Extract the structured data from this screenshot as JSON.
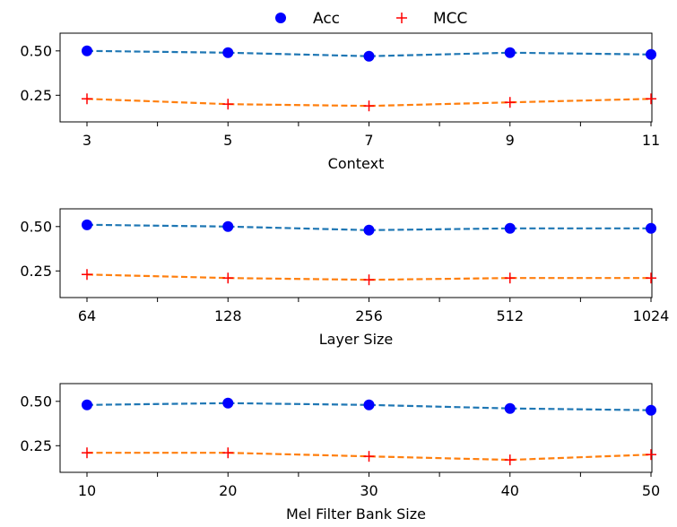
{
  "legend": {
    "items": [
      {
        "label": "Acc",
        "color": "#0000ff",
        "marker": "circle"
      },
      {
        "label": "MCC",
        "color": "#ff0000",
        "marker": "plus"
      }
    ]
  },
  "colors": {
    "acc_line": "#1f77b4",
    "mcc_line": "#ff7f0e",
    "acc_marker": "#0000ff",
    "mcc_marker": "#ff0000"
  },
  "chart_data": [
    {
      "type": "line",
      "xlabel": "Context",
      "categories": [
        "3",
        "5",
        "7",
        "9",
        "11"
      ],
      "yticks": [
        "0.25",
        "0.50"
      ],
      "ylim": [
        0.1,
        0.6
      ],
      "series": [
        {
          "name": "Acc",
          "values": [
            0.5,
            0.49,
            0.47,
            0.49,
            0.48
          ]
        },
        {
          "name": "MCC",
          "values": [
            0.23,
            0.2,
            0.19,
            0.21,
            0.23
          ]
        }
      ]
    },
    {
      "type": "line",
      "xlabel": "Layer Size",
      "categories": [
        "64",
        "128",
        "256",
        "512",
        "1024"
      ],
      "yticks": [
        "0.25",
        "0.50"
      ],
      "ylim": [
        0.1,
        0.6
      ],
      "series": [
        {
          "name": "Acc",
          "values": [
            0.51,
            0.5,
            0.48,
            0.49,
            0.49
          ]
        },
        {
          "name": "MCC",
          "values": [
            0.23,
            0.21,
            0.2,
            0.21,
            0.21
          ]
        }
      ]
    },
    {
      "type": "line",
      "xlabel": "Mel Filter Bank Size",
      "categories": [
        "10",
        "20",
        "30",
        "40",
        "50"
      ],
      "yticks": [
        "0.25",
        "0.50"
      ],
      "ylim": [
        0.1,
        0.6
      ],
      "series": [
        {
          "name": "Acc",
          "values": [
            0.48,
            0.49,
            0.48,
            0.46,
            0.45
          ]
        },
        {
          "name": "MCC",
          "values": [
            0.21,
            0.21,
            0.19,
            0.17,
            0.2
          ]
        }
      ]
    }
  ]
}
